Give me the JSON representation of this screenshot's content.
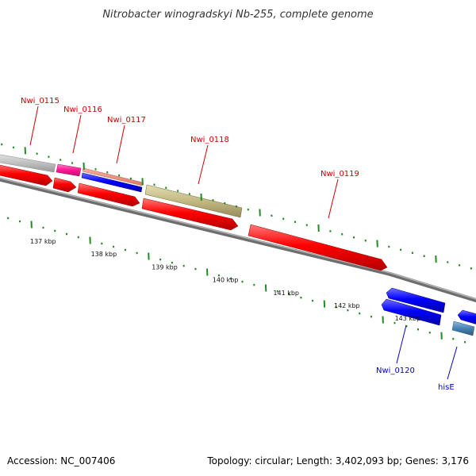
{
  "title": "Nitrobacter winogradskyi Nb-255, complete genome",
  "accession": "Accession: NC_007406",
  "topology": "Topology: circular; Length: 3,402,093 bp; Genes: 3,176",
  "ruler_labels": [
    "137 kbp",
    "138 kbp",
    "139 kbp",
    "140 kbp",
    "141 kbp",
    "142 kbp",
    "143 kbp"
  ],
  "gene_labels": {
    "nwi_0115": "Nwi_0115",
    "nwi_0116": "Nwi_0116",
    "nwi_0117": "Nwi_0117",
    "nwi_0118": "Nwi_0118",
    "nwi_0119": "Nwi_0119",
    "nwi_0120": "Nwi_0120",
    "hise": "hisE"
  },
  "colors": {
    "cds_red": "#ff0000",
    "cds_blue": "#0000ff",
    "pink": "#ff1493",
    "khaki": "#c2b882",
    "gray_gene": "#c0c0c0",
    "steel_blue": "#4682b4",
    "label_red": "#cc0000",
    "label_blue": "#0000cc",
    "tick_green": "#228b22",
    "backbone": "#888888"
  }
}
